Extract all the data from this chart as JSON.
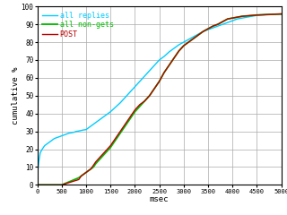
{
  "title": "",
  "xlabel": "msec",
  "ylabel": "cumulative %",
  "xlim": [
    0,
    5000
  ],
  "ylim": [
    0,
    100
  ],
  "xticks": [
    0,
    500,
    1000,
    1500,
    2000,
    2500,
    3000,
    3500,
    4000,
    4500,
    5000
  ],
  "yticks": [
    0,
    10,
    20,
    30,
    40,
    50,
    60,
    70,
    80,
    90,
    100
  ],
  "grid_color": "#aaaaaa",
  "background_color": "#ffffff",
  "series": [
    {
      "label": "all replies",
      "color": "#00ccff",
      "lw": 1.0,
      "x": [
        0,
        30,
        60,
        100,
        150,
        200,
        250,
        300,
        350,
        400,
        450,
        500,
        550,
        600,
        650,
        700,
        750,
        800,
        850,
        900,
        950,
        1000,
        1100,
        1200,
        1300,
        1400,
        1500,
        1600,
        1700,
        1800,
        1900,
        2000,
        2100,
        2200,
        2300,
        2400,
        2500,
        2600,
        2700,
        2800,
        2900,
        3000,
        3100,
        3200,
        3300,
        3400,
        3500,
        3600,
        3700,
        3800,
        3900,
        4000,
        4100,
        4200,
        4300,
        4400,
        4500,
        4700,
        5000
      ],
      "y": [
        5,
        13,
        18,
        20,
        22,
        23,
        24,
        25,
        26,
        26.5,
        27,
        27.5,
        28,
        28.5,
        29,
        29.2,
        29.5,
        30,
        30.2,
        30.5,
        30.8,
        31,
        33,
        35,
        37,
        39,
        41,
        43.5,
        46,
        49,
        52,
        55,
        58,
        61,
        64,
        67,
        70,
        72,
        74.5,
        76.5,
        78.5,
        80,
        81.5,
        83,
        84.5,
        86,
        87,
        88,
        89,
        90,
        91,
        92,
        93,
        93.5,
        94,
        94.5,
        95,
        95.4,
        95.7
      ]
    },
    {
      "label": "all non-gets",
      "color": "#00bb00",
      "lw": 1.3,
      "x": [
        0,
        500,
        850,
        900,
        950,
        1000,
        1050,
        1100,
        1150,
        1200,
        1300,
        1400,
        1500,
        1600,
        1700,
        1800,
        1900,
        2000,
        2100,
        2200,
        2300,
        2400,
        2500,
        2600,
        2700,
        2800,
        2900,
        3000,
        3100,
        3200,
        3300,
        3400,
        3500,
        3600,
        3700,
        3800,
        3900,
        4000,
        4200,
        4500,
        5000
      ],
      "y": [
        0,
        0,
        4,
        5,
        6,
        7,
        8,
        9,
        10,
        12,
        15,
        18,
        21,
        25,
        29,
        33,
        37,
        41,
        44,
        47,
        50,
        54,
        58,
        63,
        67,
        71,
        75,
        78,
        80,
        82,
        84,
        86,
        87.5,
        89,
        90,
        91.5,
        93,
        93.5,
        94.5,
        95.2,
        95.8
      ]
    },
    {
      "label": "POST",
      "color": "#bb0000",
      "lw": 1.0,
      "x": [
        0,
        500,
        850,
        900,
        950,
        1000,
        1050,
        1100,
        1150,
        1200,
        1300,
        1400,
        1500,
        1600,
        1700,
        1800,
        1900,
        2000,
        2100,
        2200,
        2300,
        2400,
        2500,
        2600,
        2700,
        2800,
        2900,
        3000,
        3100,
        3200,
        3300,
        3400,
        3500,
        3600,
        3700,
        3800,
        3900,
        4000,
        4200,
        4500,
        5000
      ],
      "y": [
        0,
        0,
        3,
        5,
        6,
        7,
        8,
        9,
        11,
        13,
        16,
        19,
        22,
        26,
        30,
        34,
        38,
        42,
        45,
        47,
        50,
        54,
        58,
        63,
        67,
        71,
        75,
        78,
        80,
        82,
        84,
        86,
        87.5,
        89,
        90,
        91.5,
        93,
        93.5,
        94.5,
        95.2,
        95.8
      ]
    }
  ],
  "legend": {
    "loc": "upper left",
    "fontsize": 6,
    "frameon": false
  }
}
